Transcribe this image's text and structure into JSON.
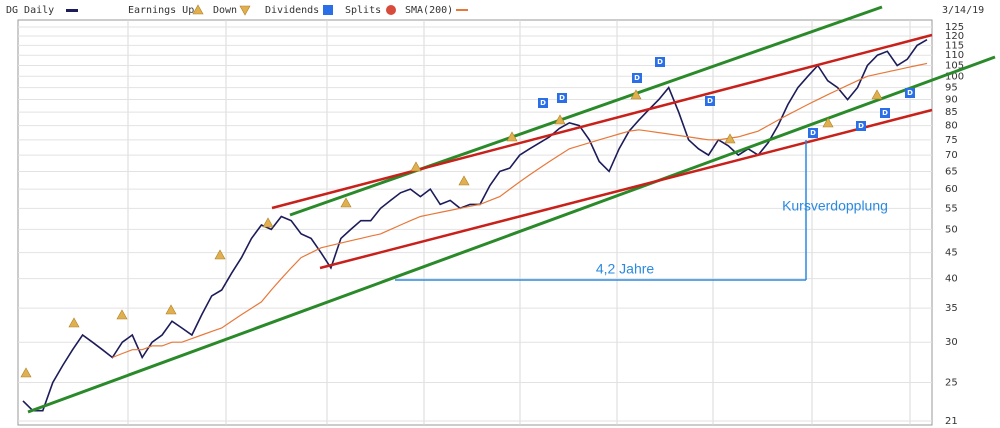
{
  "chart_data": {
    "type": "line",
    "title": "DG Daily",
    "date": "3/14/19",
    "legend_extra": [
      "Earnings Up",
      "Down",
      "Dividends",
      "Splits"
    ],
    "dividend_marker": "D",
    "annotations": [
      "Kursverdopplung",
      "4,2 Jahre"
    ],
    "log_scale": true,
    "grid": true,
    "ylim": [
      21,
      125
    ],
    "yticks": [
      21,
      25,
      30,
      35,
      40,
      45,
      50,
      55,
      60,
      65,
      70,
      75,
      80,
      85,
      90,
      95,
      100,
      105,
      110,
      115,
      120,
      125
    ],
    "series": [
      {
        "name": "DG Daily",
        "color": "#1c1c5a",
        "values": [
          23,
          22,
          22,
          25,
          27,
          29,
          31,
          30,
          29,
          28,
          30,
          31,
          28,
          30,
          31,
          33,
          32,
          31,
          34,
          37,
          38,
          41,
          44,
          48,
          51,
          50,
          53,
          52,
          49,
          48,
          45,
          42,
          48,
          50,
          52,
          52,
          55,
          57,
          59,
          60,
          58,
          60,
          56,
          57,
          55,
          56,
          56,
          61,
          65,
          66,
          70,
          72,
          74,
          76,
          79,
          81,
          80,
          75,
          68,
          65,
          72,
          78,
          82,
          86,
          90,
          95,
          85,
          75,
          72,
          70,
          75,
          73,
          70,
          72,
          70,
          74,
          80,
          88,
          95,
          100,
          105,
          98,
          95,
          90,
          95,
          105,
          110,
          112,
          105,
          108,
          115,
          118
        ]
      },
      {
        "name": "SMA(200)",
        "color": "#e8783a",
        "values": [
          null,
          null,
          null,
          null,
          null,
          null,
          null,
          null,
          null,
          28,
          28.5,
          29,
          29,
          29.5,
          29.5,
          30,
          30,
          30.5,
          31,
          31.5,
          32,
          33,
          34,
          35,
          36,
          38,
          40,
          42,
          44,
          45,
          46,
          46.5,
          47,
          47.5,
          48,
          48.5,
          49,
          50,
          51,
          52,
          53,
          53.5,
          54,
          54.5,
          55,
          55.5,
          56,
          57,
          58,
          60,
          62,
          64,
          66,
          68,
          70,
          72,
          73,
          74,
          75,
          76,
          77,
          78,
          78.5,
          78,
          77.5,
          77,
          76.5,
          76,
          75.5,
          75,
          75,
          75.5,
          76,
          77,
          78,
          80,
          82,
          84,
          86,
          88,
          90,
          92,
          94,
          96,
          98,
          100,
          101,
          102,
          103,
          104,
          105,
          106
        ]
      }
    ]
  }
}
